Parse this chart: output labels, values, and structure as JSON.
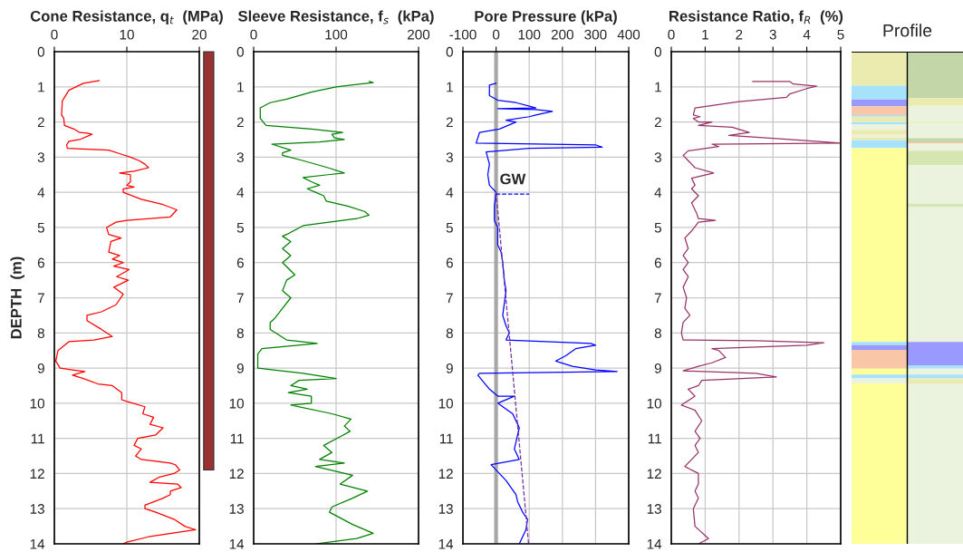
{
  "chart_data": [
    {
      "type": "line",
      "title": "Cone Resistance, q$_{t}$  (MPa)",
      "ylabel": "DEPTH  (m)",
      "xlim": [
        0,
        20
      ],
      "xticks": [
        0,
        10,
        20
      ],
      "ylim": [
        14,
        0
      ],
      "yticks": [
        0,
        1,
        2,
        3,
        4,
        5,
        6,
        7,
        8,
        9,
        10,
        11,
        12,
        13,
        14
      ],
      "grid": true,
      "series": [
        {
          "color": "#ff0000",
          "x": [
            6.2,
            4,
            2,
            1.1,
            1,
            1.3,
            1.4,
            2.7,
            3.5,
            4.5,
            5.2,
            3.5,
            2,
            1.7,
            1.8,
            7.5,
            9,
            10.5,
            11.7,
            12.5,
            13,
            11,
            9,
            10.5,
            10.5,
            10,
            11,
            9.5,
            9.5,
            12,
            15,
            16.9,
            16,
            10,
            8.5,
            7.2,
            7.5,
            9.2,
            7.8,
            7.5,
            9,
            8,
            9.5,
            8.2,
            10.3,
            8.6,
            10.2,
            8.2,
            9.5,
            8.5,
            6.5,
            4.5,
            4.5,
            6.5,
            8,
            5.5,
            2,
            0.5,
            0.2,
            0.8,
            2.5,
            4.2,
            2.5,
            4,
            6,
            8,
            9.3,
            9.3,
            10,
            12.5,
            12.2,
            13.7,
            13.2,
            15,
            14,
            11.5,
            11,
            12,
            11.2,
            12,
            16,
            16.7,
            17.3,
            16.5,
            14.5,
            13.2,
            17,
            17.5,
            16,
            16,
            15,
            12.5,
            12.5,
            14,
            16.5,
            18,
            19.5,
            13,
            10,
            9.5
          ],
          "values": [
            0.82,
            0.9,
            1.1,
            1.4,
            1.8,
            1.9,
            2.1,
            2.2,
            2.3,
            2.32,
            2.35,
            2.5,
            2.55,
            2.65,
            2.75,
            2.8,
            2.9,
            3.0,
            3.1,
            3.2,
            3.3,
            3.4,
            3.45,
            3.5,
            3.7,
            3.8,
            3.85,
            3.9,
            4.0,
            4.2,
            4.35,
            4.5,
            4.7,
            4.8,
            4.85,
            5.0,
            5.2,
            5.3,
            5.4,
            5.7,
            5.8,
            5.9,
            6.0,
            6.1,
            6.2,
            6.4,
            6.5,
            6.7,
            6.9,
            7.2,
            7.4,
            7.5,
            7.65,
            7.9,
            8.1,
            8.2,
            8.25,
            8.5,
            8.8,
            9.0,
            9.05,
            9.1,
            9.2,
            9.3,
            9.45,
            9.5,
            9.7,
            9.9,
            9.95,
            10.1,
            10.3,
            10.4,
            10.6,
            10.7,
            10.9,
            11.0,
            11.2,
            11.3,
            11.5,
            11.6,
            11.7,
            11.75,
            11.9,
            12.0,
            12.1,
            12.25,
            12.3,
            12.4,
            12.5,
            12.6,
            12.7,
            12.9,
            13.0,
            13.1,
            13.3,
            13.5,
            13.6,
            13.8,
            13.95,
            14.0
          ]
        }
      ]
    },
    {
      "type": "line",
      "title": "Sleeve Resistance, f$_{s}$  (kPa)",
      "xlim": [
        0,
        200
      ],
      "xticks": [
        0,
        100,
        200
      ],
      "ylim": [
        14,
        0
      ],
      "yticks": [
        0,
        1,
        2,
        3,
        4,
        5,
        6,
        7,
        8,
        9,
        10,
        11,
        12,
        13,
        14
      ],
      "grid": true,
      "series": [
        {
          "color": "#008000",
          "x": [
            140,
            145,
            130,
            100,
            70,
            40,
            20,
            8,
            8,
            15,
            70,
            108,
            95,
            98,
            110,
            80,
            22,
            45,
            35,
            35,
            60,
            90,
            110,
            90,
            60,
            70,
            80,
            65,
            75,
            85,
            88,
            115,
            135,
            140,
            125,
            60,
            40,
            35,
            45,
            35,
            45,
            35,
            50,
            40,
            35,
            45,
            35,
            25,
            20,
            20,
            40,
            77,
            10,
            5,
            5,
            60,
            100,
            55,
            45,
            65,
            42,
            70,
            70,
            45,
            95,
            118,
            110,
            117,
            105,
            85,
            95,
            80,
            110,
            75,
            120,
            105,
            138,
            120,
            95,
            92,
            120,
            145,
            125,
            75
          ],
          "values": [
            0.85,
            0.88,
            0.92,
            1.0,
            1.15,
            1.35,
            1.45,
            1.6,
            1.9,
            2.1,
            2.2,
            2.3,
            2.35,
            2.45,
            2.5,
            2.57,
            2.63,
            2.8,
            2.88,
            2.95,
            3.1,
            3.3,
            3.45,
            3.5,
            3.58,
            3.7,
            3.8,
            3.9,
            4.0,
            4.1,
            4.25,
            4.4,
            4.55,
            4.65,
            4.75,
            4.95,
            5.2,
            5.25,
            5.4,
            5.6,
            5.8,
            6.0,
            6.35,
            6.5,
            6.8,
            7.0,
            7.3,
            7.6,
            7.7,
            7.9,
            8.2,
            8.3,
            8.45,
            8.6,
            9.0,
            9.15,
            9.3,
            9.35,
            9.5,
            9.6,
            9.7,
            9.8,
            10.0,
            10.05,
            10.3,
            10.45,
            10.65,
            10.8,
            10.95,
            11.2,
            11.4,
            11.6,
            11.7,
            11.8,
            12.05,
            12.3,
            12.5,
            12.7,
            12.95,
            13.1,
            13.45,
            13.7,
            13.85,
            14.0
          ]
        }
      ]
    },
    {
      "type": "line",
      "title": "Pore Pressure (kPa)",
      "xlim": [
        -100,
        400
      ],
      "xticks": [
        -100,
        0,
        100,
        200,
        300,
        400
      ],
      "ylim": [
        14,
        0
      ],
      "yticks": [
        0,
        1,
        2,
        3,
        4,
        5,
        6,
        7,
        8,
        9,
        10,
        11,
        12,
        13,
        14
      ],
      "grid": true,
      "ref_lines": [
        {
          "axis": "x",
          "value": 0,
          "color": "#a6a6a6"
        }
      ],
      "annotations": [
        {
          "text": "GW",
          "x": 50,
          "y": 4
        }
      ],
      "series": [
        {
          "color": "#0000ff",
          "x": [
            0,
            -20,
            -20,
            5,
            60,
            100,
            120,
            5,
            120,
            170,
            120,
            100,
            30,
            60,
            10,
            -50,
            -60,
            300,
            320,
            100,
            -30,
            -20,
            -25,
            -20,
            0,
            -5,
            -5,
            5,
            5,
            15,
            20,
            25,
            30,
            20,
            30,
            40,
            30,
            285,
            300,
            240,
            210,
            180,
            230,
            300,
            365,
            -50,
            -55,
            -20,
            5,
            55,
            5,
            50,
            70,
            60,
            55,
            70,
            -15,
            -10,
            30,
            60,
            65,
            80,
            95,
            90,
            70
          ],
          "values": [
            0.9,
            0.95,
            1.25,
            1.38,
            1.45,
            1.55,
            1.6,
            1.62,
            1.65,
            1.7,
            1.8,
            1.85,
            1.95,
            2.0,
            2.2,
            2.3,
            2.6,
            2.65,
            2.72,
            2.75,
            2.85,
            3.2,
            3.5,
            3.8,
            4.0,
            4.4,
            4.8,
            5.0,
            5.5,
            5.7,
            6.0,
            6.5,
            6.8,
            7.5,
            7.8,
            8.0,
            8.2,
            8.3,
            8.35,
            8.45,
            8.65,
            8.8,
            8.95,
            9.05,
            9.1,
            9.15,
            9.2,
            9.6,
            9.8,
            9.8,
            10.0,
            10.3,
            10.7,
            11.1,
            11.3,
            11.6,
            11.75,
            11.8,
            12.2,
            12.6,
            12.8,
            13.1,
            13.3,
            13.6,
            14.0
          ]
        },
        {
          "color": "#7030a0",
          "line_style": "dashed",
          "x": [
            0,
            98
          ],
          "values": [
            4,
            14
          ]
        },
        {
          "color": "#0000ff",
          "line_style": "dashed",
          "x": [
            0,
            100
          ],
          "values": [
            4.05,
            4.05
          ]
        }
      ]
    },
    {
      "type": "line",
      "title": "Resistance Ratio, f$_{R}$  (%)",
      "xlim": [
        0,
        5
      ],
      "xticks": [
        0,
        1,
        2,
        3,
        4,
        5
      ],
      "ylim": [
        14,
        0
      ],
      "yticks": [
        0,
        1,
        2,
        3,
        4,
        5,
        6,
        7,
        8,
        9,
        10,
        11,
        12,
        13,
        14
      ],
      "grid": true,
      "series": [
        {
          "color": "#993366",
          "x": [
            2.4,
            3.5,
            3.6,
            4.3,
            4.0,
            3.5,
            3.4,
            2,
            0.7,
            0.65,
            0.85,
            0.65,
            0.8,
            1.2,
            0.8,
            1.8,
            2.3,
            1.7,
            3.5,
            5,
            1.2,
            1.4,
            0.5,
            0.35,
            0.5,
            0.7,
            1.25,
            0.6,
            0.7,
            0.6,
            0.8,
            0.6,
            0.75,
            0.8,
            1.3,
            0.8,
            0.6,
            0.4,
            0.5,
            0.35,
            0.5,
            0.35,
            0.5,
            0.35,
            0.45,
            0.4,
            0.55,
            0.35,
            0.3,
            0.35,
            2.5,
            4.5,
            4,
            1.2,
            1.4,
            1.6,
            1.2,
            0.8,
            0.35,
            2.5,
            3.1,
            0.9,
            0.8,
            0.5,
            0.7,
            0.3,
            0.7,
            0.9,
            0.7,
            0.85,
            0.7,
            0.8,
            0.4,
            0.8,
            0.8,
            0.7,
            0.8,
            0.65,
            0.7,
            1.1,
            0.8
          ],
          "values": [
            0.85,
            0.85,
            0.92,
            0.98,
            1.05,
            1.2,
            1.3,
            1.42,
            1.6,
            1.8,
            1.85,
            1.9,
            2.0,
            2.0,
            2.1,
            2.15,
            2.3,
            2.38,
            2.5,
            2.6,
            2.63,
            2.7,
            2.82,
            2.95,
            3.1,
            3.3,
            3.45,
            3.6,
            3.8,
            3.9,
            4.1,
            4.3,
            4.6,
            4.75,
            4.8,
            4.85,
            5.1,
            5.3,
            5.6,
            5.8,
            6.0,
            6.2,
            6.4,
            6.7,
            7.0,
            7.3,
            7.5,
            7.7,
            8.0,
            8.2,
            8.22,
            8.28,
            8.35,
            8.45,
            8.5,
            8.7,
            8.85,
            8.95,
            9.08,
            9.15,
            9.25,
            9.35,
            9.5,
            9.6,
            9.8,
            10.05,
            10.2,
            10.5,
            10.8,
            11.0,
            11.2,
            11.4,
            11.8,
            12.0,
            12.3,
            12.5,
            12.7,
            13.0,
            13.5,
            13.85,
            14.0
          ]
        }
      ]
    },
    {
      "type": "other",
      "title": "Profile"
    }
  ]
}
